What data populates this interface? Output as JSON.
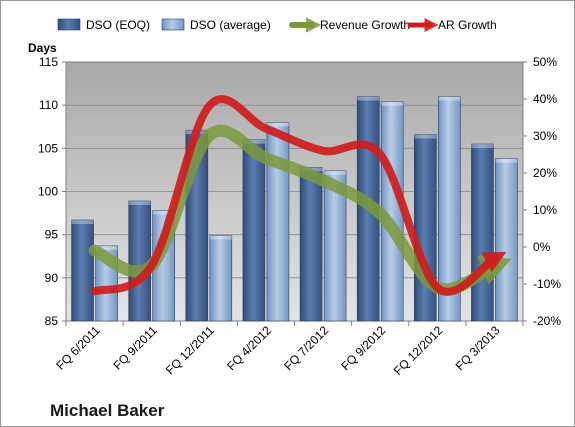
{
  "chart_data": {
    "type": "bar",
    "company": "Michael Baker",
    "ylabel": "Days",
    "categories": [
      "FQ 6/2011",
      "FQ 9/2011",
      "FQ 12/2011",
      "FQ 4/2012",
      "FQ 7/2012",
      "FQ 9/2012",
      "FQ 12/2012",
      "FQ 3/2013"
    ],
    "ylim": [
      85,
      115
    ],
    "yticks": [
      85,
      90,
      95,
      100,
      105,
      110,
      115
    ],
    "y2lim": [
      -20,
      50
    ],
    "y2ticks": [
      "-20%",
      "-10%",
      "0%",
      "10%",
      "20%",
      "30%",
      "40%",
      "50%"
    ],
    "y2tick_values": [
      -20,
      -10,
      0,
      10,
      20,
      30,
      40,
      50
    ],
    "grid": true,
    "legend_position": "top",
    "series": [
      {
        "name": "DSO (EOQ)",
        "type": "bar",
        "axis": "left",
        "color": "#4a6a9a",
        "values": [
          96.7,
          98.9,
          107.1,
          106.0,
          102.8,
          111.0,
          106.6,
          105.5
        ]
      },
      {
        "name": "DSO (average)",
        "type": "bar",
        "axis": "left",
        "color": "#8fb0d6",
        "values": [
          93.7,
          97.8,
          94.9,
          108.0,
          102.4,
          110.4,
          111.0,
          103.8
        ]
      },
      {
        "name": "Revenue Growth",
        "type": "line",
        "axis": "right",
        "color": "#7a9a3c",
        "values": [
          -1.0,
          -5.0,
          30.0,
          24.0,
          18.0,
          9.0,
          -11.0,
          -5.0
        ]
      },
      {
        "name": "AR Growth",
        "type": "line",
        "axis": "right",
        "color": "#d01c1c",
        "values": [
          -12.0,
          -5.0,
          38.0,
          32.0,
          26.0,
          25.0,
          -11.0,
          -3.0
        ]
      }
    ]
  }
}
